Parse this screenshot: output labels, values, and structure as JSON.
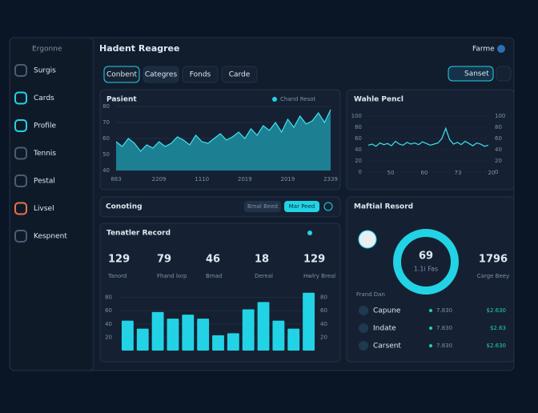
{
  "sidebar": {
    "title": "Ergonne",
    "items": [
      "Surgis",
      "Cards",
      "Profile",
      "Tennis",
      "Pestal",
      "Livsel",
      "Kespnent"
    ]
  },
  "header": {
    "title": "Hadent Reagree",
    "user": "Farme",
    "tabs": [
      "Conbent",
      "Categres",
      "Fonds",
      "Carde"
    ],
    "search": "Sanset"
  },
  "area_panel": {
    "title": "Pasient",
    "legend": "Chand Resot",
    "ylim": [
      40,
      80
    ],
    "yticks": [
      80,
      70,
      60,
      50,
      40
    ],
    "x_labels": [
      "883",
      "2209",
      "1110",
      "2019",
      "2019",
      "2339"
    ],
    "values": [
      58,
      55,
      60,
      57,
      52,
      56,
      54,
      58,
      55,
      57,
      61,
      59,
      56,
      62,
      58,
      57,
      60,
      63,
      59,
      61,
      64,
      60,
      66,
      62,
      68,
      65,
      70,
      64,
      72,
      67,
      74,
      69,
      71,
      76,
      70,
      78
    ]
  },
  "line_panel": {
    "title": "Wahle Pencl",
    "ylim": [
      0,
      100
    ],
    "yticks": [
      0,
      20,
      40,
      60,
      80,
      100
    ],
    "x_labels": [
      "50",
      "60",
      "73",
      "20"
    ],
    "values": [
      48,
      50,
      46,
      52,
      49,
      51,
      47,
      55,
      50,
      48,
      53,
      50,
      52,
      49,
      54,
      51,
      48,
      50,
      52,
      60,
      78,
      58,
      50,
      53,
      49,
      55,
      51,
      47,
      52,
      50,
      46,
      48
    ]
  },
  "coding_panel": {
    "title": "Conoting",
    "buttons": [
      "Bmal Beed",
      "Mar Peed"
    ]
  },
  "bar_panel": {
    "title": "Tenatler Record",
    "stats": [
      {
        "value": "129",
        "label": "Tanord"
      },
      {
        "value": "79",
        "label": "Fhand lorp"
      },
      {
        "value": "46",
        "label": "Bmad"
      },
      {
        "value": "18",
        "label": "Dereal"
      },
      {
        "value": "129",
        "label": "Hwlry Breal"
      }
    ],
    "ylim": [
      0,
      100
    ],
    "yticks": [
      20,
      40,
      60,
      80
    ],
    "values": [
      45,
      33,
      58,
      48,
      54,
      48,
      23,
      26,
      62,
      73,
      45,
      33,
      87
    ]
  },
  "donut_panel": {
    "title": "Maftial Resord",
    "center_value": "69",
    "center_label": "1.1i Fas",
    "side_value": "1796",
    "side_label": "Carge Beey",
    "list_title": "Frand Dan",
    "rows": [
      [
        "Capune",
        "7.830",
        "$2.630"
      ],
      [
        "Indate",
        "7.830",
        "$2.63"
      ],
      [
        "Carsent",
        "7.830",
        "$2.630"
      ]
    ]
  }
}
